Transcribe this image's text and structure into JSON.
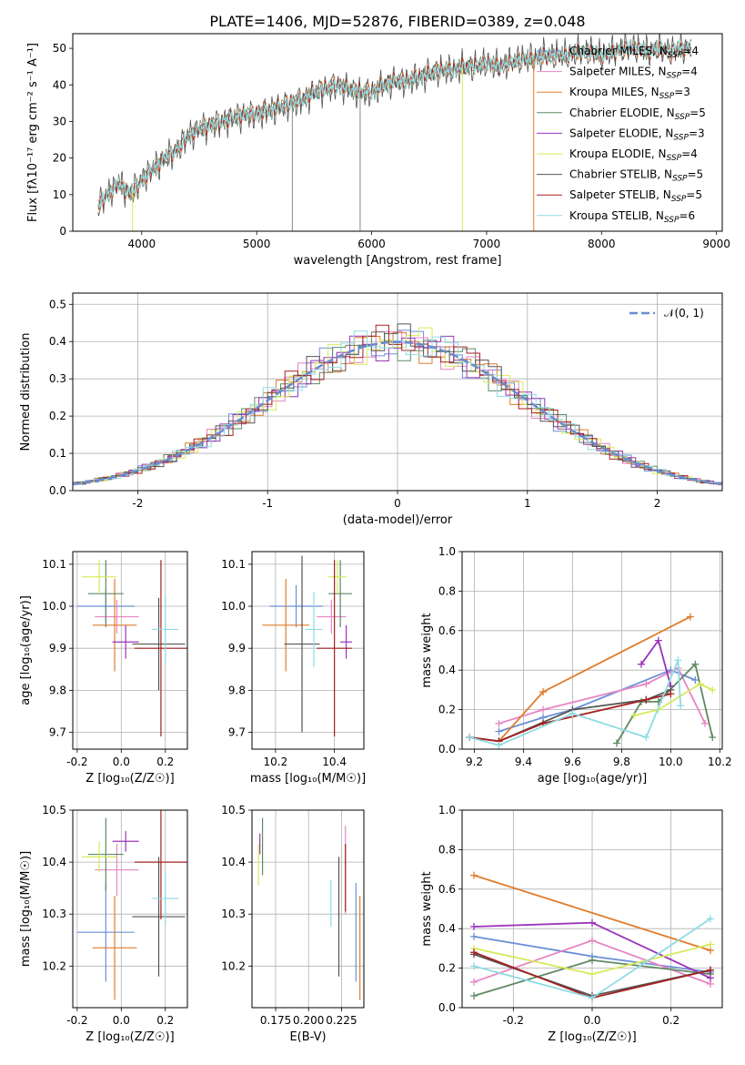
{
  "figure": {
    "title": "PLATE=1406, MJD=52876, FIBERID=0389, z=0.048"
  },
  "colors": {
    "chabrier_miles": "#6b8fd6",
    "salpeter_miles": "#e685c4",
    "kroupa_miles": "#e07c2a",
    "chabrier_elodie": "#5e8a66",
    "salpeter_elodie": "#9a35b8",
    "kroupa_elodie": "#d7ea5b",
    "chabrier_stelib": "#555555",
    "salpeter_stelib": "#a52020",
    "kroupa_stelib": "#8fdbe3",
    "normal": "#6a8ccf",
    "grid": "#b0b0b0"
  },
  "legend": {
    "series": [
      {
        "text": "Chabrier MILES, N",
        "sub": "SSP",
        "tail": "=4",
        "color_key": "chabrier_miles"
      },
      {
        "text": "Salpeter MILES, N",
        "sub": "SSP",
        "tail": "=4",
        "color_key": "salpeter_miles"
      },
      {
        "text": "Kroupa MILES, N",
        "sub": "SSP",
        "tail": "=3",
        "color_key": "kroupa_miles"
      },
      {
        "text": "Chabrier ELODIE, N",
        "sub": "SSP",
        "tail": "=5",
        "color_key": "chabrier_elodie"
      },
      {
        "text": "Salpeter ELODIE, N",
        "sub": "SSP",
        "tail": "=3",
        "color_key": "salpeter_elodie"
      },
      {
        "text": "Kroupa ELODIE, N",
        "sub": "SSP",
        "tail": "=4",
        "color_key": "kroupa_elodie"
      },
      {
        "text": "Chabrier STELIB, N",
        "sub": "SSP",
        "tail": "=5",
        "color_key": "chabrier_stelib"
      },
      {
        "text": "Salpeter STELIB, N",
        "sub": "SSP",
        "tail": "=5",
        "color_key": "salpeter_stelib"
      },
      {
        "text": "Kroupa STELIB, N",
        "sub": "SSP",
        "tail": "=6",
        "color_key": "kroupa_stelib"
      }
    ],
    "normal_label": "𝒩(0, 1)"
  },
  "chart_data": [
    {
      "id": "spectrum",
      "type": "line",
      "xlabel": "wavelength [Angstrom, rest frame]",
      "ylabel": "Flux [fλ10⁻¹⁷ erg cm⁻² s⁻¹ A⁻¹]",
      "xlim": [
        3400,
        9050
      ],
      "ylim": [
        0,
        54
      ],
      "xticks": [
        4000,
        5000,
        6000,
        7000,
        8000,
        9000
      ],
      "yticks": [
        0,
        10,
        20,
        30,
        40,
        50
      ],
      "grid": false,
      "legend_position": "upper right",
      "data_x": [
        3620,
        3700,
        3800,
        3900,
        4000,
        4100,
        4200,
        4300,
        4400,
        4500,
        4600,
        4700,
        4800,
        4900,
        5000,
        5100,
        5200,
        5300,
        5400,
        5500,
        5600,
        5700,
        5800,
        5900,
        6000,
        6100,
        6200,
        6300,
        6400,
        6500,
        6600,
        6700,
        6800,
        6900,
        7000,
        7100,
        7200,
        7300,
        7400,
        7500,
        7600,
        7700,
        7800,
        7900,
        8000,
        8100,
        8200,
        8300,
        8400,
        8500,
        8600,
        8700
      ],
      "data_y": [
        7,
        10,
        13,
        10,
        14,
        17,
        20,
        22,
        26,
        28,
        29,
        30,
        31,
        32,
        32,
        33,
        34,
        35,
        36,
        38,
        39,
        40,
        39,
        38,
        38,
        40,
        41,
        41,
        42,
        43,
        44,
        44,
        45,
        45,
        46,
        45,
        46,
        47,
        47,
        48,
        48,
        48,
        49,
        49,
        48,
        49,
        50,
        50,
        49,
        50,
        49,
        50
      ]
    },
    {
      "id": "residuals",
      "type": "line",
      "xlabel": "(data-model)/error",
      "ylabel": "Normed distribution",
      "xlim": [
        -2.5,
        2.5
      ],
      "ylim": [
        0,
        0.53
      ],
      "xticks": [
        -2,
        -1,
        0,
        1,
        2
      ],
      "yticks": [
        0.0,
        0.1,
        0.2,
        0.3,
        0.4,
        0.5
      ],
      "grid": true,
      "legend_position": "upper right",
      "normal_curve": {
        "mean": 0,
        "sigma": 1
      }
    },
    {
      "id": "z-age",
      "type": "scatter",
      "xlabel": "Z [log₁₀(Z/Z☉)]",
      "ylabel": "age  [log₁₀(age/yr)]",
      "xlim": [
        -0.22,
        0.3
      ],
      "ylim": [
        9.66,
        10.13
      ],
      "xticks": [
        -0.2,
        0.0,
        0.2
      ],
      "yticks": [
        9.7,
        9.8,
        9.9,
        10.0,
        10.1
      ],
      "grid": true,
      "points": [
        {
          "series": "Chabrier MILES",
          "x": -0.07,
          "y": 10.0,
          "xerr": 0.13,
          "yerr": 0.04
        },
        {
          "series": "Salpeter MILES",
          "x": -0.02,
          "y": 9.975,
          "xerr": 0.1,
          "yerr": 0.04
        },
        {
          "series": "Kroupa MILES",
          "x": -0.03,
          "y": 9.955,
          "xerr": 0.1,
          "yerr": 0.11
        },
        {
          "series": "Chabrier ELODIE",
          "x": -0.07,
          "y": 10.03,
          "xerr": 0.08,
          "yerr": 0.08
        },
        {
          "series": "Salpeter ELODIE",
          "x": 0.02,
          "y": 9.915,
          "xerr": 0.06,
          "yerr": 0.04
        },
        {
          "series": "Kroupa ELODIE",
          "x": -0.1,
          "y": 10.07,
          "xerr": 0.08,
          "yerr": 0.04
        },
        {
          "series": "Chabrier STELIB",
          "x": 0.17,
          "y": 9.91,
          "xerr": 0.12,
          "yerr": 0.11
        },
        {
          "series": "Salpeter STELIB",
          "x": 0.18,
          "y": 9.9,
          "xerr": 0.12,
          "yerr": 0.21
        },
        {
          "series": "Kroupa STELIB",
          "x": 0.2,
          "y": 9.945,
          "xerr": 0.06,
          "yerr": 0.08
        }
      ]
    },
    {
      "id": "mass-age",
      "type": "scatter",
      "xlabel": "mass [log₁₀(M/M☉)]",
      "ylabel": "",
      "xlim": [
        10.12,
        10.5
      ],
      "ylim": [
        9.66,
        10.13
      ],
      "xticks": [
        10.2,
        10.4
      ],
      "yticks": [
        9.7,
        9.8,
        9.9,
        10.0,
        10.1
      ],
      "grid": true,
      "points": [
        {
          "series": "Chabrier MILES",
          "x": 10.27,
          "y": 10.0,
          "xerr": 0.09,
          "yerr": 0.05
        },
        {
          "series": "Salpeter MILES",
          "x": 10.39,
          "y": 9.975,
          "xerr": 0.05,
          "yerr": 0.04
        },
        {
          "series": "Kroupa MILES",
          "x": 10.235,
          "y": 9.955,
          "xerr": 0.08,
          "yerr": 0.11
        },
        {
          "series": "Chabrier ELODIE",
          "x": 10.42,
          "y": 10.03,
          "xerr": 0.04,
          "yerr": 0.08
        },
        {
          "series": "Salpeter ELODIE",
          "x": 10.44,
          "y": 9.915,
          "xerr": 0.02,
          "yerr": 0.04
        },
        {
          "series": "Kroupa ELODIE",
          "x": 10.41,
          "y": 10.07,
          "xerr": 0.03,
          "yerr": 0.04
        },
        {
          "series": "Chabrier STELIB",
          "x": 10.29,
          "y": 9.91,
          "xerr": 0.06,
          "yerr": 0.21
        },
        {
          "series": "Salpeter STELIB",
          "x": 10.4,
          "y": 9.9,
          "xerr": 0.06,
          "yerr": 0.21
        },
        {
          "series": "Kroupa STELIB",
          "x": 10.33,
          "y": 9.945,
          "xerr": 0.03,
          "yerr": 0.09
        }
      ]
    },
    {
      "id": "age-weight",
      "type": "line",
      "xlabel": "age  [log₁₀(age/yr)]",
      "ylabel": "mass weight",
      "xlim": [
        9.15,
        10.21
      ],
      "ylim": [
        0,
        1.0
      ],
      "xticks": [
        9.2,
        9.4,
        9.6,
        9.8,
        10.0,
        10.2
      ],
      "yticks": [
        0.0,
        0.2,
        0.4,
        0.6,
        0.8,
        1.0
      ],
      "grid": true,
      "series": [
        {
          "name": "Chabrier MILES",
          "x": [
            9.3,
            9.48,
            9.6,
            10.0,
            10.1
          ],
          "y": [
            0.09,
            0.16,
            0.2,
            0.4,
            0.35
          ]
        },
        {
          "name": "Salpeter MILES",
          "x": [
            9.3,
            9.48,
            9.9,
            10.03,
            10.14
          ],
          "y": [
            0.13,
            0.2,
            0.33,
            0.41,
            0.13
          ]
        },
        {
          "name": "Kroupa MILES",
          "x": [
            9.3,
            9.48,
            10.08
          ],
          "y": [
            0.04,
            0.29,
            0.67
          ]
        },
        {
          "name": "Chabrier ELODIE",
          "x": [
            9.78,
            9.88,
            9.95,
            10.1,
            10.17
          ],
          "y": [
            0.03,
            0.24,
            0.24,
            0.43,
            0.06
          ]
        },
        {
          "name": "Salpeter ELODIE",
          "x": [
            9.88,
            9.95,
            10.0
          ],
          "y": [
            0.43,
            0.55,
            0.32
          ]
        },
        {
          "name": "Kroupa ELODIE",
          "x": [
            9.85,
            9.95,
            10.12,
            10.17
          ],
          "y": [
            0.17,
            0.2,
            0.33,
            0.3
          ]
        },
        {
          "name": "Chabrier STELIB",
          "x": [
            9.18,
            9.3,
            9.6,
            9.9,
            10.0
          ],
          "y": [
            0.06,
            0.04,
            0.2,
            0.25,
            0.3
          ]
        },
        {
          "name": "Salpeter STELIB",
          "x": [
            9.18,
            9.3,
            9.48,
            9.9,
            10.0
          ],
          "y": [
            0.06,
            0.04,
            0.13,
            0.25,
            0.28
          ]
        },
        {
          "name": "Kroupa STELIB",
          "x": [
            9.18,
            9.3,
            9.6,
            9.9,
            10.03,
            10.04
          ],
          "y": [
            0.06,
            0.02,
            0.18,
            0.06,
            0.45,
            0.22
          ]
        }
      ]
    },
    {
      "id": "z-mass",
      "type": "scatter",
      "xlabel": "Z [log₁₀(Z/Z☉)]",
      "ylabel": "mass [log₁₀(M/M☉)]",
      "xlim": [
        -0.22,
        0.3
      ],
      "ylim": [
        10.12,
        10.5
      ],
      "xticks": [
        -0.2,
        0.0,
        0.2
      ],
      "yticks": [
        10.2,
        10.3,
        10.4,
        10.5
      ],
      "grid": true,
      "points": [
        {
          "series": "Chabrier MILES",
          "x": -0.07,
          "y": 10.265,
          "xerr": 0.13,
          "yerr": 0.095
        },
        {
          "series": "Salpeter MILES",
          "x": -0.02,
          "y": 10.385,
          "xerr": 0.1,
          "yerr": 0.05
        },
        {
          "series": "Kroupa MILES",
          "x": -0.03,
          "y": 10.235,
          "xerr": 0.1,
          "yerr": 0.1
        },
        {
          "series": "Chabrier ELODIE",
          "x": -0.07,
          "y": 10.415,
          "xerr": 0.08,
          "yerr": 0.07
        },
        {
          "series": "Salpeter ELODIE",
          "x": 0.02,
          "y": 10.44,
          "xerr": 0.06,
          "yerr": 0.02
        },
        {
          "series": "Kroupa ELODIE",
          "x": -0.1,
          "y": 10.41,
          "xerr": 0.08,
          "yerr": 0.03
        },
        {
          "series": "Chabrier STELIB",
          "x": 0.17,
          "y": 10.295,
          "xerr": 0.12,
          "yerr": 0.115
        },
        {
          "series": "Salpeter STELIB",
          "x": 0.18,
          "y": 10.4,
          "xerr": 0.12,
          "yerr": 0.11
        },
        {
          "series": "Kroupa STELIB",
          "x": 0.2,
          "y": 10.33,
          "xerr": 0.06,
          "yerr": 0.05
        }
      ]
    },
    {
      "id": "ebv-mass",
      "type": "scatter",
      "xlabel": "E(B-V)",
      "ylabel": "",
      "xlim": [
        0.157,
        0.242
      ],
      "ylim": [
        10.12,
        10.5
      ],
      "xticks": [
        0.175,
        0.2,
        0.225
      ],
      "yticks": [
        10.2,
        10.3,
        10.4,
        10.5
      ],
      "grid": true,
      "points": [
        {
          "series": "Chabrier MILES",
          "x": 0.236,
          "y": 10.265,
          "xerr": 0,
          "yerr": 0.095
        },
        {
          "series": "Salpeter MILES",
          "x": 0.228,
          "y": 10.385,
          "xerr": 0,
          "yerr": 0.085
        },
        {
          "series": "Kroupa MILES",
          "x": 0.239,
          "y": 10.235,
          "xerr": 0,
          "yerr": 0.1
        },
        {
          "series": "Chabrier ELODIE",
          "x": 0.165,
          "y": 10.43,
          "xerr": 0,
          "yerr": 0.055
        },
        {
          "series": "Salpeter ELODIE",
          "x": 0.163,
          "y": 10.435,
          "xerr": 0,
          "yerr": 0.02
        },
        {
          "series": "Kroupa ELODIE",
          "x": 0.162,
          "y": 10.395,
          "xerr": 0,
          "yerr": 0.04
        },
        {
          "series": "Chabrier STELIB",
          "x": 0.223,
          "y": 10.295,
          "xerr": 0,
          "yerr": 0.115
        },
        {
          "series": "Salpeter STELIB",
          "x": 0.228,
          "y": 10.37,
          "xerr": 0,
          "yerr": 0.065
        },
        {
          "series": "Kroupa STELIB",
          "x": 0.217,
          "y": 10.32,
          "xerr": 0,
          "yerr": 0.045
        }
      ]
    },
    {
      "id": "z-weight",
      "type": "line",
      "xlabel": "Z [log₁₀(Z/Z☉)]",
      "ylabel": "mass weight",
      "xlim": [
        -0.33,
        0.33
      ],
      "ylim": [
        0,
        1.0
      ],
      "xticks": [
        -0.2,
        0.0,
        0.2
      ],
      "yticks": [
        0.0,
        0.2,
        0.4,
        0.6,
        0.8,
        1.0
      ],
      "grid": true,
      "series": [
        {
          "name": "Chabrier MILES",
          "x": [
            -0.3,
            0.0,
            0.3
          ],
          "y": [
            0.36,
            0.26,
            0.18
          ]
        },
        {
          "name": "Salpeter MILES",
          "x": [
            -0.3,
            0.0,
            0.3
          ],
          "y": [
            0.13,
            0.34,
            0.12
          ]
        },
        {
          "name": "Kroupa MILES",
          "x": [
            -0.3,
            0.3
          ],
          "y": [
            0.67,
            0.29
          ]
        },
        {
          "name": "Chabrier ELODIE",
          "x": [
            -0.3,
            0.0,
            0.3
          ],
          "y": [
            0.06,
            0.24,
            0.17
          ]
        },
        {
          "name": "Salpeter ELODIE",
          "x": [
            -0.3,
            0.0,
            0.3
          ],
          "y": [
            0.41,
            0.43,
            0.15
          ]
        },
        {
          "name": "Kroupa ELODIE",
          "x": [
            -0.3,
            0.0,
            0.3
          ],
          "y": [
            0.3,
            0.17,
            0.32
          ]
        },
        {
          "name": "Chabrier STELIB",
          "x": [
            -0.3,
            0.0,
            0.3
          ],
          "y": [
            0.27,
            0.06,
            0.19
          ]
        },
        {
          "name": "Salpeter STELIB",
          "x": [
            -0.3,
            0.0,
            0.3
          ],
          "y": [
            0.28,
            0.05,
            0.19
          ]
        },
        {
          "name": "Kroupa STELIB",
          "x": [
            -0.3,
            0.0,
            0.3
          ],
          "y": [
            0.21,
            0.05,
            0.45
          ]
        }
      ]
    }
  ]
}
